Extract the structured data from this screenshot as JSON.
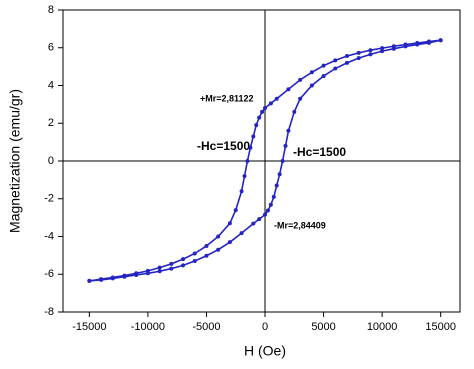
{
  "chart_data": {
    "type": "line",
    "x_label": "H (Oe)",
    "y_label": "Magnetization (emu/gr)",
    "xlim": [
      -17250,
      16650
    ],
    "ylim": [
      -8,
      8
    ],
    "xticks": [
      -15000,
      -10000,
      -5000,
      0,
      5000,
      10000,
      15000
    ],
    "yticks": [
      -8,
      -6,
      -4,
      -2,
      0,
      2,
      4,
      6,
      8
    ],
    "annotations": [
      "+Mr=2,81122",
      "-Hc=1500",
      "-Hc=1500",
      "-Mr=2,84409"
    ],
    "series": [
      {
        "color": "#2424c4",
        "x": [
          15000,
          14000,
          13000,
          12000,
          11000,
          10000,
          9000,
          8000,
          7000,
          6000,
          5000,
          4000,
          3000,
          2000,
          1000,
          500,
          0,
          -250,
          -500,
          -750,
          -1000,
          -1250,
          -1500,
          -1750,
          -2000,
          -2500,
          -3000,
          -4000,
          -5000,
          -6000,
          -7000,
          -8000,
          -9000,
          -10000,
          -11000,
          -12000,
          -13000,
          -14000,
          -15000
        ],
        "values": [
          6.4,
          6.33,
          6.25,
          6.17,
          6.08,
          5.98,
          5.87,
          5.73,
          5.56,
          5.33,
          5.05,
          4.7,
          4.3,
          3.8,
          3.3,
          3.05,
          2.81,
          2.6,
          2.3,
          1.9,
          1.3,
          0.7,
          0,
          -0.8,
          -1.6,
          -2.6,
          -3.3,
          -4.0,
          -4.5,
          -4.9,
          -5.2,
          -5.45,
          -5.65,
          -5.82,
          -5.95,
          -6.07,
          -6.17,
          -6.26,
          -6.35
        ]
      },
      {
        "color": "#2424c4",
        "x": [
          -15000,
          -14000,
          -13000,
          -12000,
          -11000,
          -10000,
          -9000,
          -8000,
          -7000,
          -6000,
          -5000,
          -4000,
          -3000,
          -2000,
          -1000,
          -500,
          0,
          250,
          500,
          750,
          1000,
          1250,
          1500,
          1750,
          2000,
          2500,
          3000,
          4000,
          5000,
          6000,
          7000,
          8000,
          9000,
          10000,
          11000,
          12000,
          13000,
          14000,
          15000
        ],
        "values": [
          -6.35,
          -6.3,
          -6.22,
          -6.13,
          -6.04,
          -5.95,
          -5.84,
          -5.7,
          -5.53,
          -5.3,
          -5.02,
          -4.7,
          -4.3,
          -3.82,
          -3.32,
          -3.08,
          -2.84,
          -2.62,
          -2.32,
          -1.9,
          -1.3,
          -0.7,
          0,
          0.8,
          1.6,
          2.6,
          3.3,
          4.0,
          4.5,
          4.9,
          5.2,
          5.45,
          5.65,
          5.82,
          5.95,
          6.07,
          6.17,
          6.26,
          6.4
        ]
      }
    ]
  }
}
